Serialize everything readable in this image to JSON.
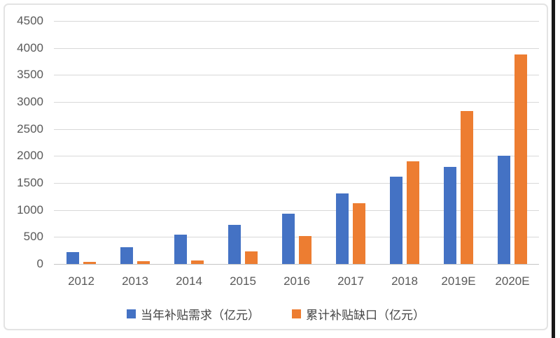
{
  "chart_data": {
    "type": "bar",
    "title": "",
    "categories": [
      "2012",
      "2013",
      "2014",
      "2015",
      "2016",
      "2017",
      "2018",
      "2019E",
      "2020E"
    ],
    "series": [
      {
        "name": "当年补贴需求（亿元）",
        "color": "#4472C4",
        "values": [
          220,
          315,
          545,
          720,
          930,
          1300,
          1620,
          1800,
          2000
        ]
      },
      {
        "name": "累计补贴缺口（亿元）",
        "color": "#ED7D31",
        "values": [
          40,
          55,
          65,
          230,
          520,
          1120,
          1900,
          2830,
          3880
        ]
      }
    ],
    "xlabel": "",
    "ylabel": "",
    "ylim": [
      0,
      4500
    ],
    "ytick_step": 500,
    "ytick_labels": [
      "0",
      "500",
      "1000",
      "1500",
      "2000",
      "2500",
      "3000",
      "3500",
      "4000",
      "4500"
    ],
    "grid": true,
    "legend_position": "bottom",
    "colors": {
      "gridline": "#d8d8d8",
      "baseline": "#c4c4c4",
      "tick_label": "#595959",
      "legend_label": "#444444",
      "frame_border": "#e3e3e3",
      "right_edge": "#181818"
    }
  }
}
